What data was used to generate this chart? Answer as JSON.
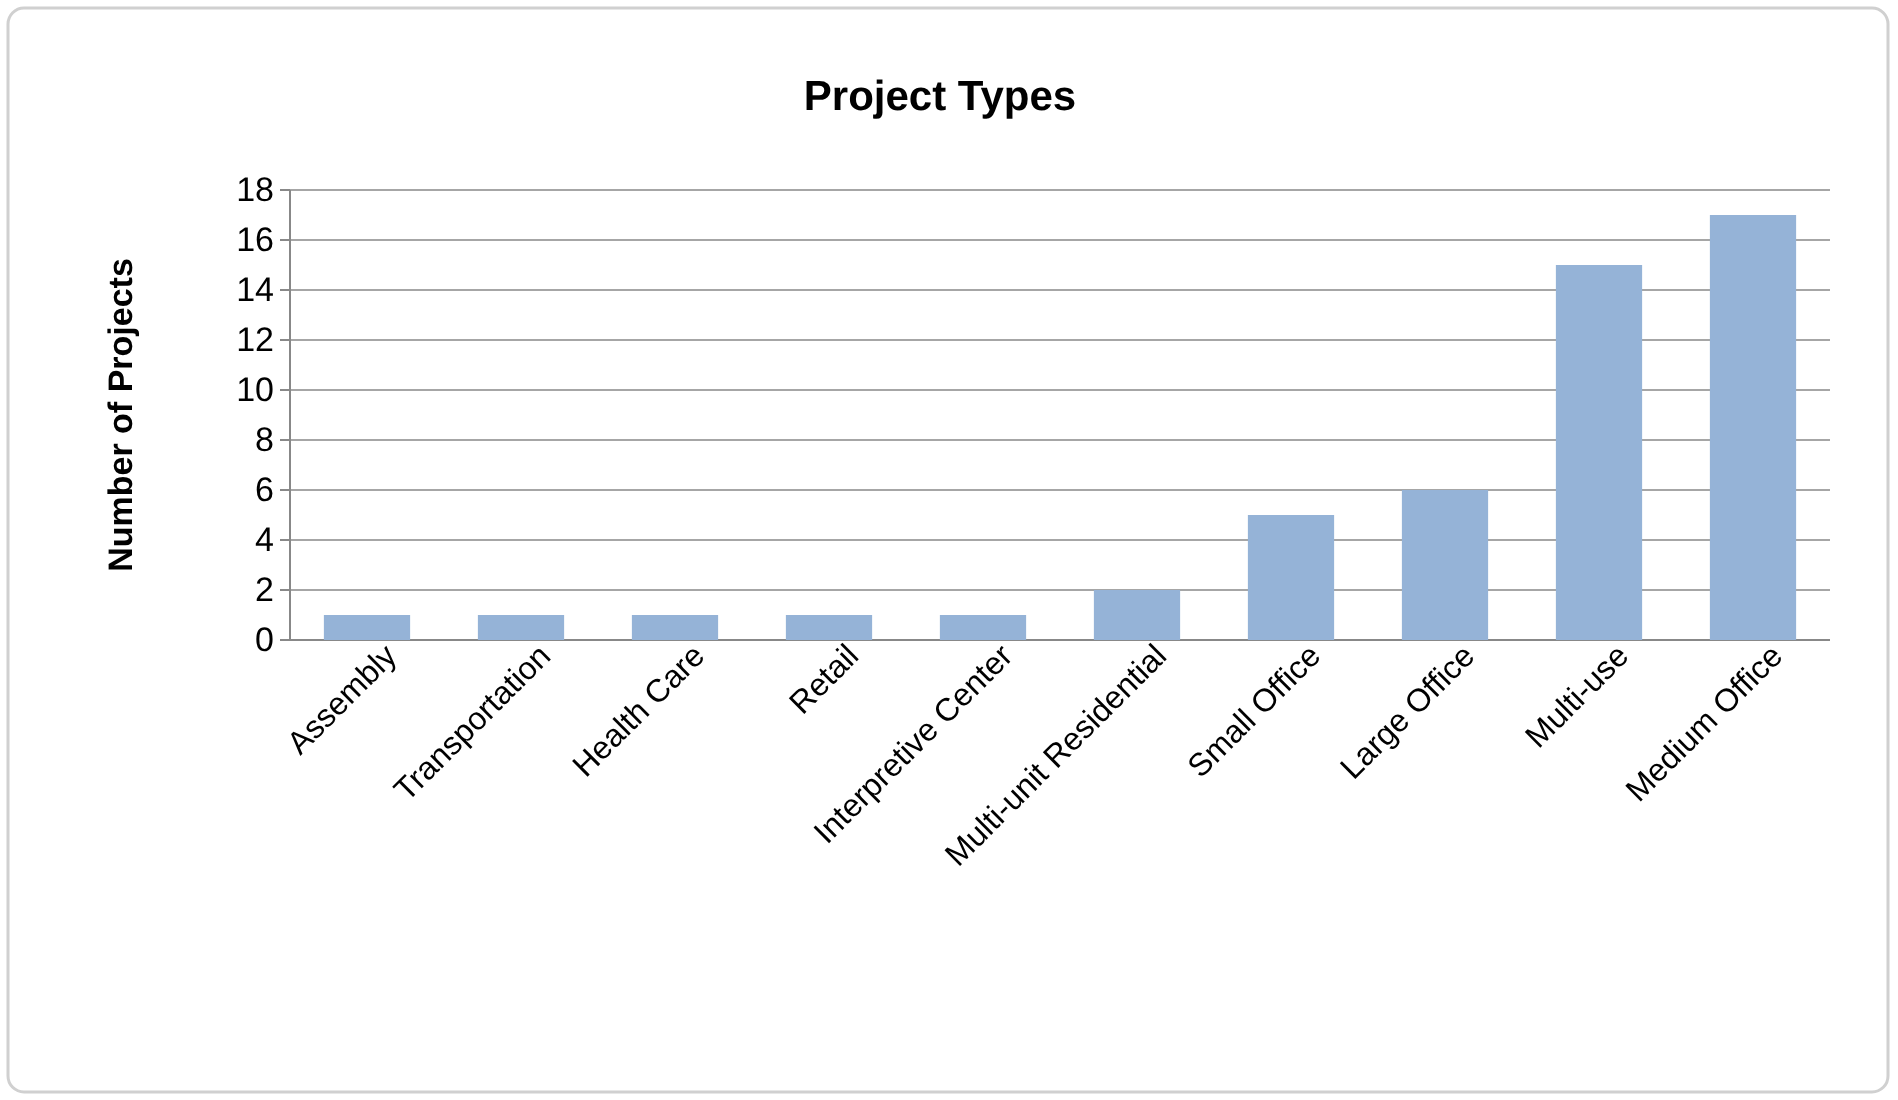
{
  "chart_data": {
    "type": "bar",
    "title": "Project Types",
    "ylabel": "Number of Projects",
    "categories": [
      "Assembly",
      "Transportation",
      "Health Care",
      "Retail",
      "Interpretive Center",
      "Multi-unit  Residential",
      "Small Office",
      "Large Office",
      "Multi-use",
      "Medium Office"
    ],
    "values": [
      1,
      1,
      1,
      1,
      1,
      2,
      5,
      6,
      15,
      17
    ],
    "color": "#95b3d7",
    "ylim": [
      0,
      18
    ],
    "yticks": [
      0,
      2,
      4,
      6,
      8,
      10,
      12,
      14,
      16,
      18
    ],
    "grid": "y"
  }
}
